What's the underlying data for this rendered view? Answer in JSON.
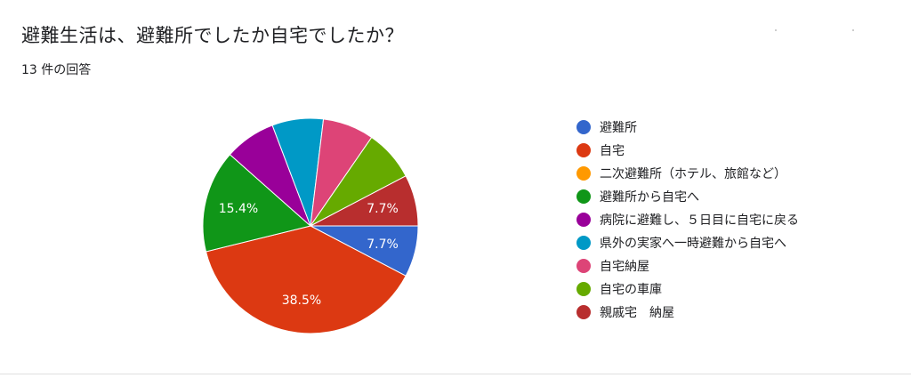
{
  "question": {
    "title": "避難生活は、避難所でしたか自宅でしたか？",
    "response_count": "13 件の回答"
  },
  "colors": {
    "text": "#202124",
    "slice_label": "#ffffff"
  },
  "chart_data": {
    "type": "pie",
    "title": "避難生活は、避難所でしたか自宅でしたか？",
    "legend_position": "right",
    "total_responses": 13,
    "slices": [
      {
        "label": "避難所",
        "count": 1,
        "percent": 7.7,
        "percent_label": "7.7%",
        "color": "#3366cc"
      },
      {
        "label": "自宅",
        "count": 5,
        "percent": 38.5,
        "percent_label": "38.5%",
        "color": "#dc3912"
      },
      {
        "label": "二次避難所（ホテル、旅館など）",
        "count": 0,
        "percent": 0,
        "percent_label": "",
        "color": "#ff9900"
      },
      {
        "label": "避難所から自宅へ",
        "count": 2,
        "percent": 15.4,
        "percent_label": "15.4%",
        "color": "#109618"
      },
      {
        "label": "病院に避難し、５日目に自宅に戻る",
        "count": 1,
        "percent": 7.7,
        "percent_label": "",
        "color": "#990099"
      },
      {
        "label": "県外の実家へ一時避難から自宅へ",
        "count": 1,
        "percent": 7.7,
        "percent_label": "",
        "color": "#0099c6"
      },
      {
        "label": "自宅納屋",
        "count": 1,
        "percent": 7.7,
        "percent_label": "",
        "color": "#dd4477"
      },
      {
        "label": "自宅の車庫",
        "count": 1,
        "percent": 7.7,
        "percent_label": "",
        "color": "#66aa00"
      },
      {
        "label": "親戚宅　納屋",
        "count": 1,
        "percent": 7.7,
        "percent_label": "7.7%",
        "color": "#b82e2e"
      }
    ]
  }
}
